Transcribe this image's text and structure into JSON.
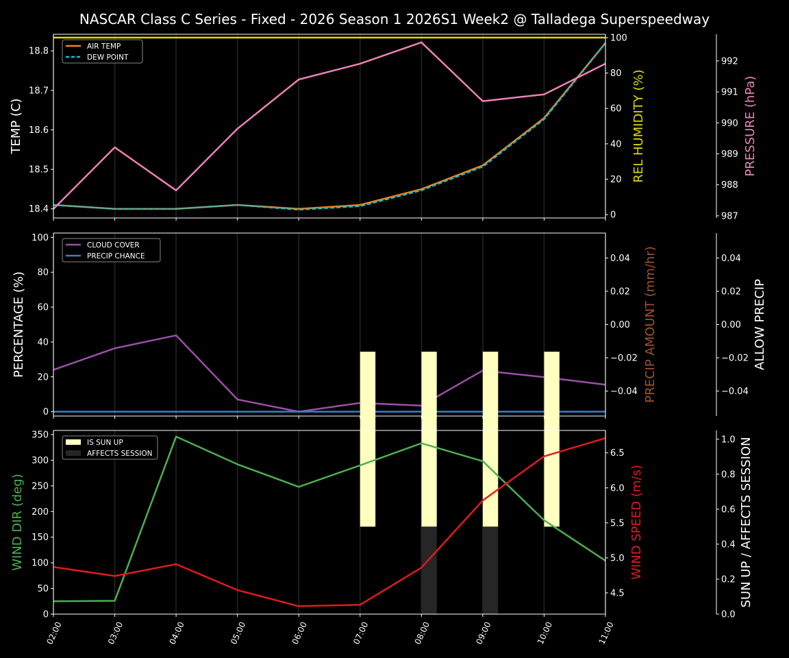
{
  "title": "NASCAR Class C Series - Fixed - 2026 Season 1 2026S1 Week2 @ Talladega Superspeedway",
  "chart_data": [
    {
      "type": "line",
      "x": [
        "02:00",
        "03:00",
        "04:00",
        "05:00",
        "06:00",
        "07:00",
        "08:00",
        "09:00",
        "10:00",
        "11:00"
      ],
      "axes": {
        "left": {
          "label": "TEMP (C)",
          "color": "#ffffff",
          "ylim": [
            18.377,
            18.842
          ],
          "ticks": [
            18.4,
            18.5,
            18.6,
            18.7,
            18.8
          ],
          "tick_labels": [
            "18.4",
            "18.5",
            "18.6",
            "18.7",
            "18.8"
          ]
        },
        "right": {
          "label": "REL HUMIDITY (%)",
          "color": "#dddd00",
          "ylim": [
            -1.9,
            101.9
          ],
          "ticks": [
            0,
            20,
            40,
            60,
            80,
            100
          ],
          "tick_labels": [
            "0",
            "20",
            "40",
            "60",
            "80",
            "100"
          ]
        },
        "far_right": {
          "label": "PRESSURE (hPa)",
          "color": "#ee82b8",
          "ylim": [
            986.93,
            992.86
          ],
          "ticks": [
            987,
            988,
            989,
            990,
            991,
            992
          ],
          "tick_labels": [
            "987",
            "988",
            "989",
            "990",
            "991",
            "992"
          ]
        }
      },
      "series": [
        {
          "name": "AIR TEMP",
          "axis": "left",
          "color": "#ff7f0e",
          "dash": false,
          "values": [
            18.41,
            18.4,
            18.4,
            18.41,
            18.4,
            18.41,
            18.45,
            18.51,
            18.63,
            18.82
          ]
        },
        {
          "name": "DEW POINT",
          "axis": "left",
          "color": "#17becf",
          "dash": true,
          "values": [
            18.41,
            18.4,
            18.4,
            18.41,
            18.398,
            18.407,
            18.447,
            18.507,
            18.627,
            18.82
          ]
        },
        {
          "axis": "right",
          "color": "#dddd00",
          "dash": false,
          "values": [
            100,
            100,
            100,
            100,
            100,
            100,
            100,
            100,
            100,
            100
          ]
        },
        {
          "axis": "far_right",
          "color": "#ee82b8",
          "dash": false,
          "values": [
            987.22,
            989.21,
            987.82,
            989.81,
            991.4,
            991.91,
            992.6,
            990.7,
            990.92,
            991.91
          ]
        }
      ],
      "legend": {
        "placement": "top-left",
        "entries": [
          "AIR TEMP",
          "DEW POINT"
        ]
      }
    },
    {
      "type": "line",
      "x": [
        "02:00",
        "03:00",
        "04:00",
        "05:00",
        "06:00",
        "07:00",
        "08:00",
        "09:00",
        "10:00",
        "11:00"
      ],
      "axes": {
        "left": {
          "label": "PERCENTAGE (%)",
          "color": "#ffffff",
          "ylim": [
            -2.5,
            102.5
          ],
          "ticks": [
            0,
            20,
            40,
            60,
            80,
            100
          ],
          "tick_labels": [
            "0",
            "20",
            "40",
            "60",
            "80",
            "100"
          ]
        },
        "right": {
          "label": "PRECIP AMOUNT (mm/hr)",
          "color": "#a0522d",
          "ylim": [
            -0.055,
            0.055
          ],
          "ticks": [
            -0.04,
            -0.02,
            0,
            0.02,
            0.04
          ],
          "tick_labels": [
            "−0.04",
            "−0.02",
            "0.00",
            "0.02",
            "0.04"
          ]
        },
        "far_right": {
          "label": "ALLOW PRECIP",
          "color": "#ffffff",
          "ylim": [
            -0.055,
            0.055
          ],
          "ticks": [
            -0.04,
            -0.02,
            0,
            0.02,
            0.04
          ],
          "tick_labels": [
            "−0.04",
            "−0.02",
            "0.00",
            "0.02",
            "0.04"
          ]
        }
      },
      "series": [
        {
          "name": "CLOUD COVER",
          "axis": "left",
          "color": "#9b4fa8",
          "dash": false,
          "values": [
            24,
            36.4,
            43.8,
            7,
            0,
            5,
            3.5,
            23.6,
            19.8,
            15.5
          ]
        },
        {
          "name": "PRECIP CHANCE",
          "axis": "left",
          "color": "#3a7fc4",
          "dash": false,
          "values": [
            0,
            0,
            0,
            0,
            0,
            0,
            0,
            0,
            0,
            0
          ]
        }
      ],
      "legend": {
        "placement": "top-left",
        "entries": [
          "CLOUD COVER",
          "PRECIP CHANCE"
        ]
      }
    },
    {
      "type": "line",
      "x": [
        "02:00",
        "03:00",
        "04:00",
        "05:00",
        "06:00",
        "07:00",
        "08:00",
        "09:00",
        "10:00",
        "11:00"
      ],
      "axes": {
        "left": {
          "label": "WIND DIR (deg)",
          "color": "#4caf50",
          "ylim": [
            0,
            358
          ],
          "ticks": [
            0,
            50,
            100,
            150,
            200,
            250,
            300,
            350
          ],
          "tick_labels": [
            "0",
            "50",
            "100",
            "150",
            "200",
            "250",
            "300",
            "350"
          ]
        },
        "right": {
          "label": "WIND SPEED (m/s)",
          "color": "#e31a1c",
          "ylim": [
            4.196,
            6.82
          ],
          "ticks": [
            4.5,
            5.0,
            5.5,
            6.0,
            6.5
          ],
          "tick_labels": [
            "4.5",
            "5.0",
            "5.5",
            "6.0",
            "6.5"
          ]
        },
        "far_right": {
          "label": "SUN UP / AFFECTS SESSION",
          "color": "#ffffff",
          "ylim": [
            0,
            1.05
          ],
          "ticks": [
            0,
            0.2,
            0.4,
            0.6,
            0.8,
            1.0
          ],
          "tick_labels": [
            "0.0",
            "0.2",
            "0.4",
            "0.6",
            "0.8",
            "1.0"
          ]
        }
      },
      "series": [
        {
          "axis": "left",
          "color": "#4caf50",
          "dash": false,
          "values": [
            25,
            26,
            346,
            292,
            248,
            290,
            333,
            298,
            183,
            104
          ]
        },
        {
          "axis": "right",
          "color": "#e31a1c",
          "dash": false,
          "values": [
            4.87,
            4.74,
            4.91,
            4.54,
            4.31,
            4.33,
            4.86,
            5.82,
            6.45,
            6.71
          ]
        }
      ],
      "bars": [
        {
          "name": "IS SUN UP",
          "axis": "far_right",
          "color": "#ffffc0",
          "bottom": 0.5,
          "values": [
            0,
            0,
            0,
            0,
            0,
            1,
            1,
            1,
            1,
            0
          ]
        },
        {
          "name": "AFFECTS SESSION",
          "axis": "far_right",
          "color": "#262626",
          "bottom": 0,
          "values": [
            0,
            0,
            0,
            0,
            0,
            0,
            0.5,
            0.5,
            0,
            0
          ]
        }
      ],
      "legend": {
        "placement": "top-left",
        "entries": [
          "IS SUN UP",
          "AFFECTS SESSION"
        ]
      }
    }
  ]
}
